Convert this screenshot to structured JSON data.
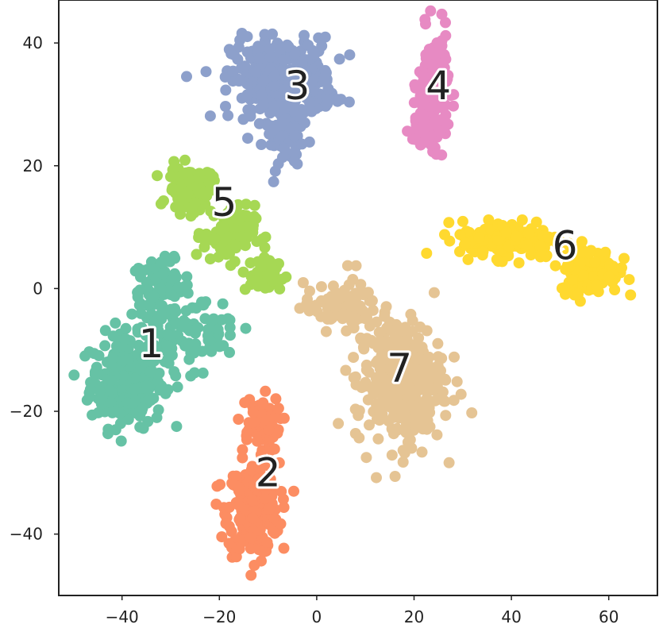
{
  "chart_data": {
    "type": "scatter",
    "title": "",
    "xlabel": "",
    "ylabel": "",
    "xlim": [
      -53,
      70
    ],
    "ylim": [
      -50,
      47
    ],
    "x_ticks": [
      -40,
      -20,
      0,
      20,
      40,
      60
    ],
    "y_ticks": [
      -40,
      -20,
      0,
      20,
      40
    ],
    "x_tick_labels": [
      "−40",
      "−20",
      "0",
      "20",
      "40",
      "60"
    ],
    "y_tick_labels": [
      "−40",
      "−20",
      "0",
      "20",
      "40"
    ],
    "grid": false,
    "legend": "none",
    "clusters": [
      {
        "label": "1",
        "color": "#66c2a5",
        "label_pos": [
          -34,
          -9
        ],
        "regions": [
          {
            "center": [
              -39,
              -15
            ],
            "spread": [
              5,
              5
            ],
            "count": 260
          },
          {
            "center": [
              -32,
              0
            ],
            "spread": [
              4,
              3
            ],
            "count": 90
          },
          {
            "center": [
              -30,
              -8
            ],
            "spread": [
              6,
              5
            ],
            "count": 80
          },
          {
            "center": [
              -20,
              -8
            ],
            "spread": [
              3,
              3
            ],
            "count": 30
          }
        ]
      },
      {
        "label": "2",
        "color": "#fc8d62",
        "label_pos": [
          -10,
          -30
        ],
        "regions": [
          {
            "center": [
              -13,
              -36
            ],
            "spread": [
              3.5,
              5
            ],
            "count": 260
          },
          {
            "center": [
              -12,
              -22
            ],
            "spread": [
              3,
              3
            ],
            "count": 70
          }
        ]
      },
      {
        "label": "3",
        "color": "#8da0cb",
        "label_pos": [
          -4,
          33
        ],
        "regions": [
          {
            "center": [
              -7,
              34
            ],
            "spread": [
              7,
              4.5
            ],
            "count": 320
          },
          {
            "center": [
              -6,
              24
            ],
            "spread": [
              3,
              3
            ],
            "count": 50
          }
        ]
      },
      {
        "label": "4",
        "color": "#e78ac3",
        "label_pos": [
          25,
          33
        ],
        "regions": [
          {
            "center": [
              24,
              33
            ],
            "spread": [
              2,
              6
            ],
            "count": 160
          },
          {
            "center": [
              22,
              26
            ],
            "spread": [
              2,
              2.5
            ],
            "count": 40
          }
        ]
      },
      {
        "label": "5",
        "color": "#a6d854",
        "label_pos": [
          -19,
          14
        ],
        "regions": [
          {
            "center": [
              -26,
              16
            ],
            "spread": [
              3,
              2.5
            ],
            "count": 110
          },
          {
            "center": [
              -18,
              9
            ],
            "spread": [
              3.5,
              3
            ],
            "count": 90
          },
          {
            "center": [
              -11,
              2
            ],
            "spread": [
              3,
              2
            ],
            "count": 40
          }
        ]
      },
      {
        "label": "6",
        "color": "#ffd92f",
        "label_pos": [
          51,
          7
        ],
        "regions": [
          {
            "center": [
              40,
              8
            ],
            "spread": [
              7,
              2
            ],
            "count": 170
          },
          {
            "center": [
              56,
              3
            ],
            "spread": [
              4,
              2.5
            ],
            "count": 150
          }
        ]
      },
      {
        "label": "7",
        "color": "#e5c494",
        "label_pos": [
          17,
          -13
        ],
        "regions": [
          {
            "center": [
              17,
              -15
            ],
            "spread": [
              6,
              7
            ],
            "count": 330
          },
          {
            "center": [
              5,
              -3
            ],
            "spread": [
              5,
              2.5
            ],
            "count": 90
          }
        ]
      }
    ]
  }
}
